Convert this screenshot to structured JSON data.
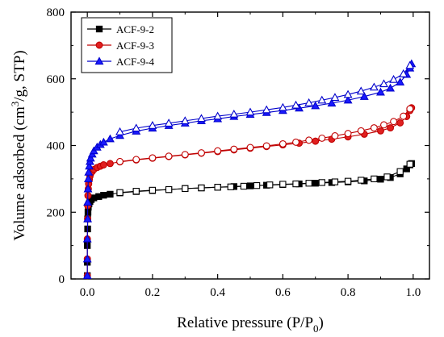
{
  "chart_data": {
    "type": "scatter",
    "xlabel": "Relative pressure (P/P",
    "xlabel_sub": "0",
    "xlabel_end": ")",
    "ylabel_pre": "Volume adsorbed (cm",
    "ylabel_sup": "3",
    "ylabel_post": "/g, STP)",
    "xlim": [
      -0.05,
      1.05
    ],
    "ylim": [
      0,
      800
    ],
    "x_ticks": [
      0.0,
      0.2,
      0.4,
      0.6,
      0.8,
      1.0
    ],
    "x_tick_labels": [
      "0.0",
      "0.2",
      "0.4",
      "0.6",
      "0.8",
      "1.0"
    ],
    "y_ticks": [
      0,
      200,
      400,
      600,
      800
    ],
    "y_tick_labels": [
      "0",
      "200",
      "400",
      "600",
      "800"
    ],
    "grid": false,
    "legend_position": "top-left",
    "series": [
      {
        "name": "ACF-9-2",
        "color": "#000000",
        "marker": "square",
        "adsorption": [
          [
            0.0,
            10
          ],
          [
            0.0,
            50
          ],
          [
            0.0,
            100
          ],
          [
            0.001,
            150
          ],
          [
            0.001,
            180
          ],
          [
            0.002,
            200
          ],
          [
            0.003,
            215
          ],
          [
            0.005,
            225
          ],
          [
            0.008,
            232
          ],
          [
            0.012,
            238
          ],
          [
            0.02,
            243
          ],
          [
            0.035,
            247
          ],
          [
            0.05,
            251
          ],
          [
            0.07,
            254
          ],
          [
            0.1,
            258
          ],
          [
            0.15,
            262
          ],
          [
            0.2,
            265
          ],
          [
            0.25,
            268
          ],
          [
            0.3,
            271
          ],
          [
            0.35,
            273
          ],
          [
            0.4,
            275
          ],
          [
            0.45,
            277
          ],
          [
            0.5,
            279
          ],
          [
            0.55,
            281
          ],
          [
            0.6,
            283
          ],
          [
            0.65,
            285
          ],
          [
            0.7,
            287
          ],
          [
            0.75,
            289
          ],
          [
            0.8,
            291
          ],
          [
            0.85,
            294
          ],
          [
            0.9,
            299
          ],
          [
            0.93,
            304
          ],
          [
            0.96,
            315
          ],
          [
            0.98,
            330
          ],
          [
            0.99,
            342
          ],
          [
            0.995,
            346
          ]
        ],
        "desorption": [
          [
            0.99,
            344
          ],
          [
            0.96,
            322
          ],
          [
            0.92,
            306
          ],
          [
            0.88,
            300
          ],
          [
            0.84,
            296
          ],
          [
            0.8,
            293
          ],
          [
            0.76,
            291
          ],
          [
            0.72,
            289
          ],
          [
            0.68,
            287
          ],
          [
            0.64,
            285
          ],
          [
            0.6,
            284
          ],
          [
            0.56,
            282
          ],
          [
            0.52,
            280
          ],
          [
            0.48,
            278
          ],
          [
            0.44,
            276
          ],
          [
            0.4,
            275
          ],
          [
            0.35,
            273
          ],
          [
            0.3,
            271
          ],
          [
            0.25,
            268
          ],
          [
            0.2,
            266
          ],
          [
            0.15,
            263
          ],
          [
            0.1,
            259
          ]
        ]
      },
      {
        "name": "ACF-9-3",
        "color": "#c00000",
        "fill_color": "#e02020",
        "marker": "circle",
        "adsorption": [
          [
            0.0,
            10
          ],
          [
            0.0,
            60
          ],
          [
            0.0,
            120
          ],
          [
            0.001,
            180
          ],
          [
            0.001,
            220
          ],
          [
            0.002,
            250
          ],
          [
            0.003,
            270
          ],
          [
            0.004,
            285
          ],
          [
            0.006,
            298
          ],
          [
            0.008,
            308
          ],
          [
            0.01,
            315
          ],
          [
            0.015,
            322
          ],
          [
            0.02,
            328
          ],
          [
            0.03,
            334
          ],
          [
            0.04,
            338
          ],
          [
            0.05,
            342
          ],
          [
            0.07,
            346
          ],
          [
            0.1,
            351
          ],
          [
            0.15,
            357
          ],
          [
            0.2,
            362
          ],
          [
            0.25,
            367
          ],
          [
            0.3,
            372
          ],
          [
            0.35,
            377
          ],
          [
            0.4,
            382
          ],
          [
            0.45,
            387
          ],
          [
            0.5,
            392
          ],
          [
            0.55,
            397
          ],
          [
            0.6,
            402
          ],
          [
            0.65,
            407
          ],
          [
            0.7,
            413
          ],
          [
            0.75,
            419
          ],
          [
            0.8,
            426
          ],
          [
            0.85,
            434
          ],
          [
            0.9,
            444
          ],
          [
            0.93,
            453
          ],
          [
            0.96,
            468
          ],
          [
            0.98,
            487
          ],
          [
            0.99,
            505
          ],
          [
            0.995,
            513
          ]
        ],
        "desorption": [
          [
            0.99,
            510
          ],
          [
            0.97,
            488
          ],
          [
            0.94,
            472
          ],
          [
            0.91,
            462
          ],
          [
            0.88,
            453
          ],
          [
            0.84,
            444
          ],
          [
            0.8,
            436
          ],
          [
            0.76,
            429
          ],
          [
            0.72,
            422
          ],
          [
            0.68,
            416
          ],
          [
            0.64,
            410
          ],
          [
            0.6,
            405
          ],
          [
            0.55,
            399
          ],
          [
            0.5,
            394
          ],
          [
            0.45,
            389
          ],
          [
            0.4,
            384
          ],
          [
            0.35,
            378
          ],
          [
            0.3,
            373
          ],
          [
            0.25,
            368
          ],
          [
            0.2,
            363
          ],
          [
            0.15,
            358
          ],
          [
            0.1,
            352
          ]
        ]
      },
      {
        "name": "ACF-9-4",
        "color": "#0000cc",
        "fill_color": "#1a1aff",
        "marker": "triangle",
        "adsorption": [
          [
            0.0,
            10
          ],
          [
            0.0,
            60
          ],
          [
            0.0,
            120
          ],
          [
            0.001,
            180
          ],
          [
            0.001,
            230
          ],
          [
            0.002,
            270
          ],
          [
            0.003,
            300
          ],
          [
            0.004,
            320
          ],
          [
            0.006,
            338
          ],
          [
            0.008,
            352
          ],
          [
            0.01,
            362
          ],
          [
            0.015,
            374
          ],
          [
            0.02,
            384
          ],
          [
            0.03,
            395
          ],
          [
            0.04,
            403
          ],
          [
            0.05,
            410
          ],
          [
            0.07,
            420
          ],
          [
            0.1,
            430
          ],
          [
            0.15,
            443
          ],
          [
            0.2,
            452
          ],
          [
            0.25,
            460
          ],
          [
            0.3,
            467
          ],
          [
            0.35,
            474
          ],
          [
            0.4,
            480
          ],
          [
            0.45,
            487
          ],
          [
            0.5,
            493
          ],
          [
            0.55,
            499
          ],
          [
            0.6,
            505
          ],
          [
            0.65,
            512
          ],
          [
            0.7,
            519
          ],
          [
            0.75,
            527
          ],
          [
            0.8,
            536
          ],
          [
            0.85,
            547
          ],
          [
            0.9,
            560
          ],
          [
            0.93,
            572
          ],
          [
            0.96,
            590
          ],
          [
            0.98,
            613
          ],
          [
            0.99,
            632
          ],
          [
            0.995,
            645
          ]
        ],
        "desorption": [
          [
            0.99,
            640
          ],
          [
            0.97,
            615
          ],
          [
            0.94,
            598
          ],
          [
            0.91,
            585
          ],
          [
            0.88,
            575
          ],
          [
            0.84,
            563
          ],
          [
            0.8,
            553
          ],
          [
            0.76,
            544
          ],
          [
            0.72,
            536
          ],
          [
            0.68,
            528
          ],
          [
            0.64,
            521
          ],
          [
            0.6,
            514
          ],
          [
            0.55,
            507
          ],
          [
            0.5,
            500
          ],
          [
            0.45,
            494
          ],
          [
            0.4,
            488
          ],
          [
            0.35,
            481
          ],
          [
            0.3,
            474
          ],
          [
            0.25,
            467
          ],
          [
            0.2,
            460
          ],
          [
            0.15,
            452
          ],
          [
            0.1,
            441
          ]
        ]
      }
    ]
  }
}
